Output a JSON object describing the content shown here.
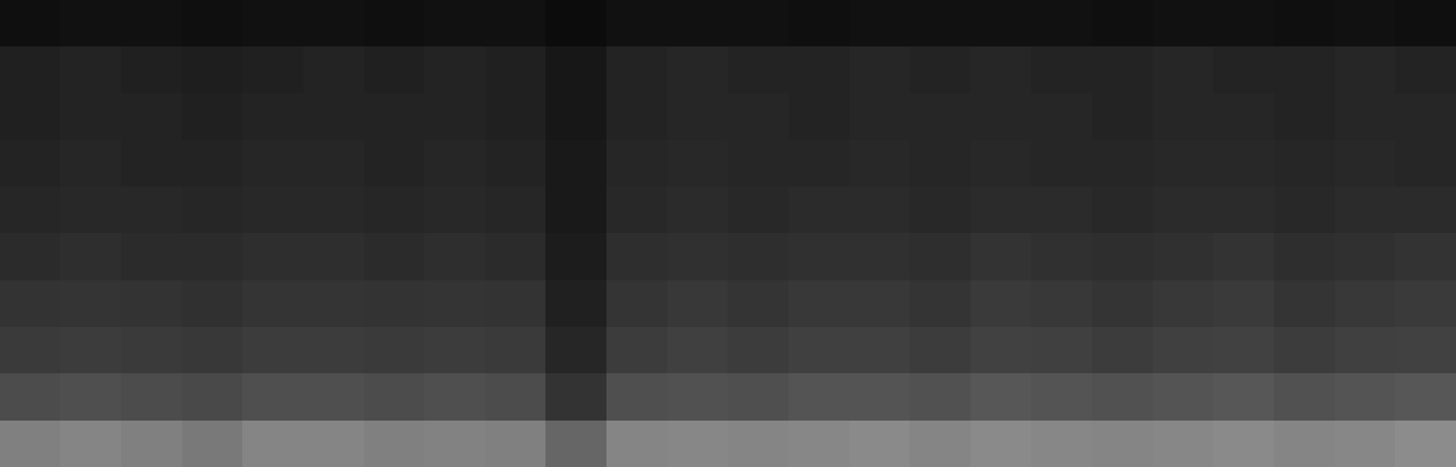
{
  "chart_data": {
    "type": "heatmap",
    "tick_labels": false,
    "color": "gray",
    "zlim": [
      0,
      1
    ],
    "cells": [
      [
        0.06,
        0.07,
        0.07,
        0.06,
        0.07,
        0.07,
        0.06,
        0.07,
        0.07,
        0.05,
        0.07,
        0.07,
        0.07,
        0.06,
        0.07,
        0.07,
        0.07,
        0.07,
        0.06,
        0.07,
        0.07,
        0.06,
        0.07,
        0.06
      ],
      [
        0.13,
        0.14,
        0.13,
        0.12,
        0.13,
        0.14,
        0.13,
        0.14,
        0.13,
        0.09,
        0.14,
        0.15,
        0.14,
        0.14,
        0.15,
        0.14,
        0.15,
        0.14,
        0.14,
        0.15,
        0.14,
        0.14,
        0.15,
        0.14
      ],
      [
        0.13,
        0.14,
        0.14,
        0.13,
        0.14,
        0.14,
        0.14,
        0.14,
        0.13,
        0.09,
        0.14,
        0.15,
        0.15,
        0.14,
        0.15,
        0.15,
        0.15,
        0.15,
        0.14,
        0.15,
        0.15,
        0.14,
        0.15,
        0.15
      ],
      [
        0.14,
        0.15,
        0.14,
        0.14,
        0.15,
        0.15,
        0.14,
        0.15,
        0.14,
        0.1,
        0.15,
        0.16,
        0.15,
        0.15,
        0.16,
        0.15,
        0.16,
        0.15,
        0.15,
        0.16,
        0.16,
        0.15,
        0.16,
        0.15
      ],
      [
        0.15,
        0.16,
        0.16,
        0.15,
        0.16,
        0.16,
        0.15,
        0.16,
        0.15,
        0.1,
        0.16,
        0.17,
        0.16,
        0.17,
        0.17,
        0.16,
        0.17,
        0.17,
        0.16,
        0.17,
        0.17,
        0.16,
        0.17,
        0.17
      ],
      [
        0.17,
        0.18,
        0.17,
        0.17,
        0.18,
        0.18,
        0.17,
        0.18,
        0.17,
        0.11,
        0.18,
        0.19,
        0.18,
        0.19,
        0.19,
        0.18,
        0.2,
        0.19,
        0.18,
        0.19,
        0.2,
        0.18,
        0.19,
        0.2
      ],
      [
        0.2,
        0.21,
        0.2,
        0.19,
        0.21,
        0.21,
        0.2,
        0.21,
        0.2,
        0.13,
        0.21,
        0.22,
        0.21,
        0.22,
        0.22,
        0.21,
        0.23,
        0.22,
        0.21,
        0.22,
        0.23,
        0.21,
        0.22,
        0.23
      ],
      [
        0.23,
        0.24,
        0.23,
        0.22,
        0.24,
        0.24,
        0.23,
        0.24,
        0.23,
        0.15,
        0.24,
        0.25,
        0.24,
        0.25,
        0.25,
        0.24,
        0.26,
        0.25,
        0.24,
        0.25,
        0.26,
        0.24,
        0.25,
        0.26
      ],
      [
        0.3,
        0.31,
        0.3,
        0.29,
        0.31,
        0.31,
        0.3,
        0.31,
        0.3,
        0.2,
        0.31,
        0.32,
        0.31,
        0.33,
        0.33,
        0.32,
        0.34,
        0.33,
        0.32,
        0.33,
        0.34,
        0.32,
        0.33,
        0.34
      ],
      [
        0.5,
        0.52,
        0.5,
        0.48,
        0.52,
        0.52,
        0.5,
        0.51,
        0.5,
        0.4,
        0.52,
        0.53,
        0.52,
        0.53,
        0.54,
        0.52,
        0.54,
        0.53,
        0.52,
        0.53,
        0.54,
        0.52,
        0.53,
        0.55
      ]
    ]
  }
}
